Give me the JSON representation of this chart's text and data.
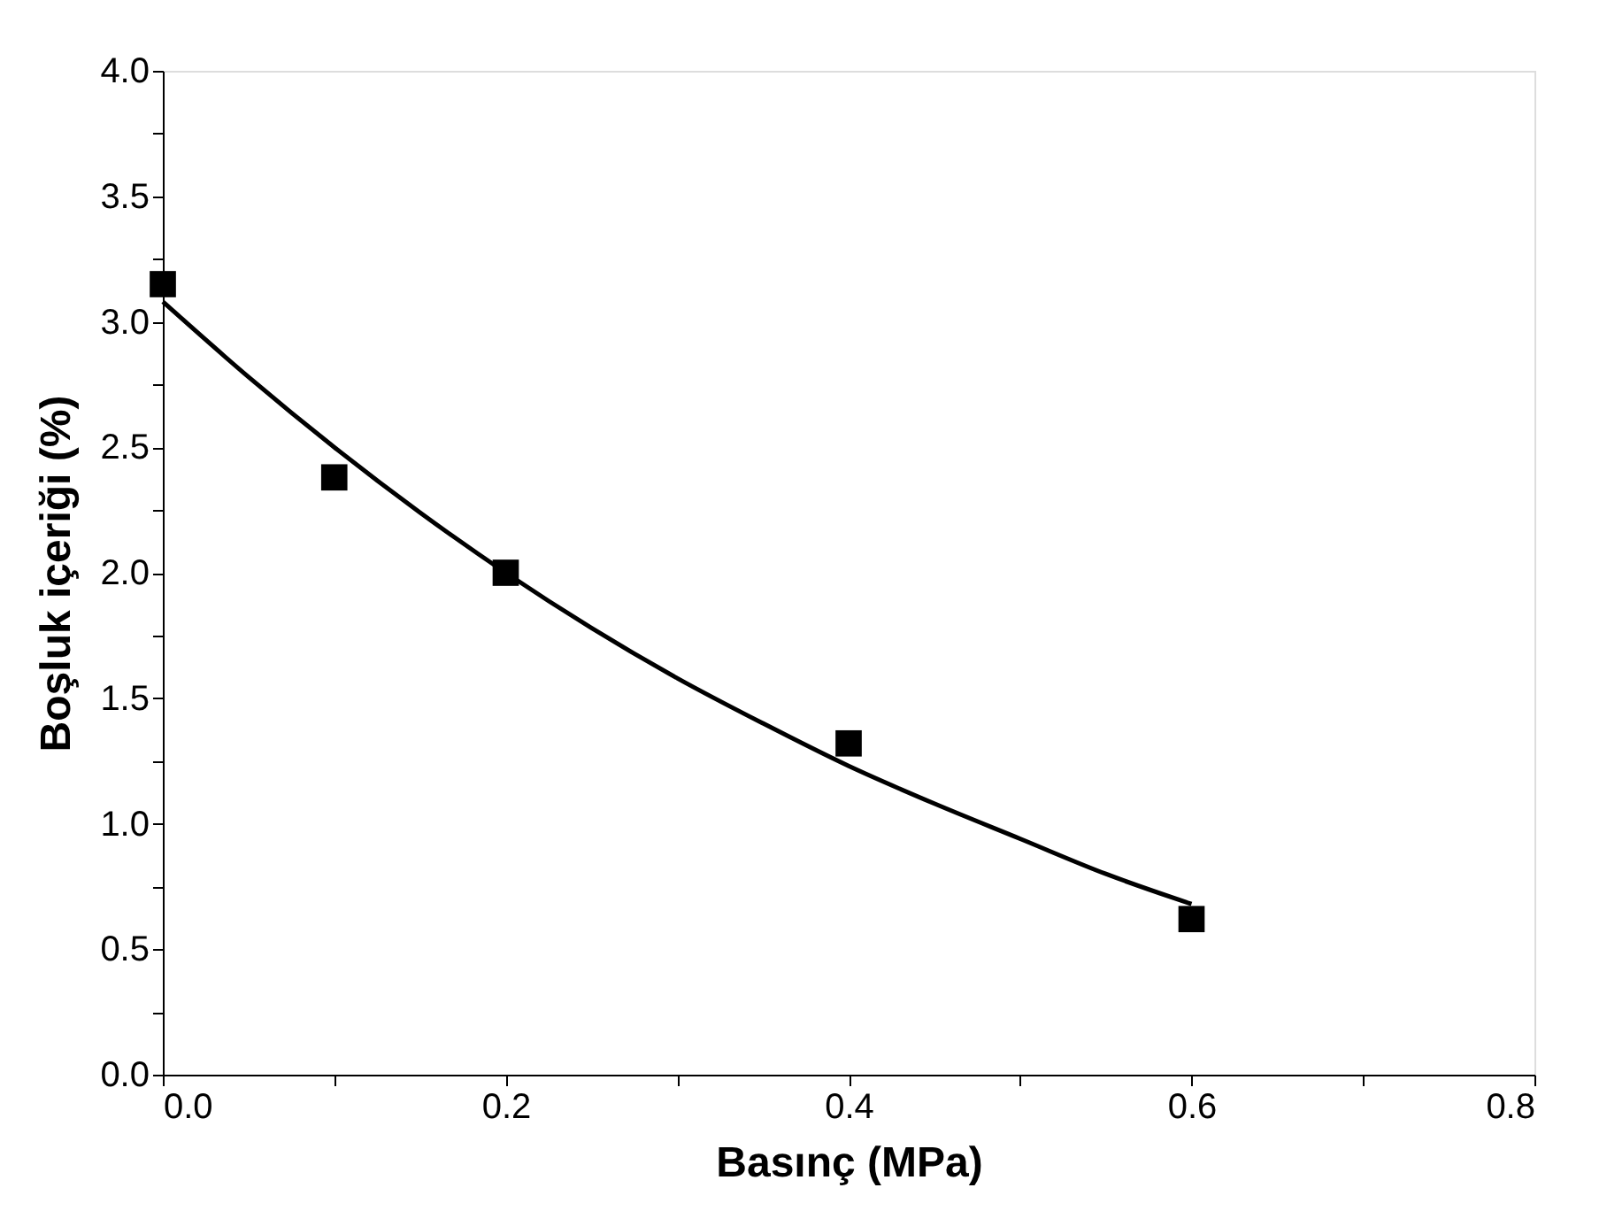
{
  "chart_data": {
    "type": "scatter",
    "xlabel": "Basınç (MPa)",
    "ylabel": "Boşluk içeriği (%)",
    "xlim": [
      0,
      0.8
    ],
    "ylim": [
      0,
      4.0
    ],
    "xticks": [
      {
        "value": 0,
        "label": "0.0"
      },
      {
        "value": 0.1,
        "label": null
      },
      {
        "value": 0.2,
        "label": "0.2"
      },
      {
        "value": 0.3,
        "label": null
      },
      {
        "value": 0.4,
        "label": "0.4"
      },
      {
        "value": 0.5,
        "label": null
      },
      {
        "value": 0.6,
        "label": "0.6"
      },
      {
        "value": 0.7,
        "label": null
      },
      {
        "value": 0.8,
        "label": "0.8"
      }
    ],
    "yticks": [
      {
        "value": 0,
        "label": "0.0"
      },
      {
        "value": 0.25,
        "label": null
      },
      0.5,
      {
        "value": 0.75,
        "label": null
      },
      {
        "value": 1,
        "label": "1.0"
      },
      {
        "value": 1.25,
        "label": null
      },
      1.5,
      {
        "value": 1.75,
        "label": null
      },
      {
        "value": 2,
        "label": "2.0"
      },
      {
        "value": 2.25,
        "label": null
      },
      2.5,
      {
        "value": 2.75,
        "label": null
      },
      {
        "value": 3,
        "label": "3.0"
      },
      {
        "value": 3.25,
        "label": null
      },
      3.5,
      {
        "value": 3.75,
        "label": null
      },
      {
        "value": 4,
        "label": "4.0"
      }
    ],
    "grid": false,
    "series": [
      {
        "marker": "square",
        "color": "#000000",
        "x": [
          0,
          0.1,
          0.2,
          0.4,
          0.6
        ],
        "values": [
          3.15,
          2.38,
          2.0,
          1.32,
          0.62
        ]
      },
      {
        "type": "line",
        "color": "#000000",
        "line_style": "solid",
        "marker": "none",
        "x": [
          0,
          0.05,
          0.1,
          0.15,
          0.2,
          0.25,
          0.3,
          0.35,
          0.4,
          0.45,
          0.5,
          0.55,
          0.6
        ],
        "values": [
          3.08,
          2.78,
          2.5,
          2.24,
          2.0,
          1.78,
          1.58,
          1.4,
          1.23,
          1.08,
          0.94,
          0.8,
          0.68
        ]
      }
    ]
  }
}
